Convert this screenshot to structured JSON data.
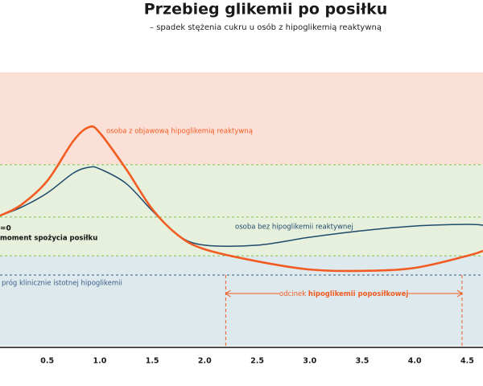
{
  "chart_data": {
    "type": "line",
    "title": "Przebieg glikemii po posiłku",
    "subtitle": "– spadek stężenia cukru u osób z hipoglikemią reaktywną",
    "x": [
      0.05,
      0.25,
      0.5,
      0.75,
      0.9,
      1.0,
      1.25,
      1.5,
      1.75,
      2.0,
      2.5,
      3.0,
      3.5,
      4.0,
      4.5,
      4.65
    ],
    "series": [
      {
        "name": "osoba z objawową hipoglikemią reaktywną",
        "color": "#f25c22",
        "values": [
          47.6,
          51.5,
          60.3,
          75,
          80,
          77.9,
          64.7,
          50,
          40.3,
          35.3,
          30.9,
          27.9,
          27.4,
          28.5,
          32.9,
          34.7
        ]
      },
      {
        "name": "osoba bez hipoglikemii reaktywnej",
        "color": "#1e4a6b",
        "values": [
          47.6,
          50.6,
          55.9,
          63.2,
          65.3,
          64.7,
          59.4,
          49.4,
          40.3,
          36.8,
          36.8,
          39.7,
          42.1,
          43.8,
          44.4,
          44.1
        ]
      }
    ],
    "xlim": [
      0.05,
      4.65
    ],
    "ylim": [
      0,
      100
    ],
    "xticks": [
      0.5,
      {
        "value": 1,
        "label": "1.0"
      },
      1.5,
      {
        "value": 2,
        "label": "2.0"
      },
      2.5,
      {
        "value": 3,
        "label": "3.0"
      },
      3.5,
      {
        "value": 4,
        "label": "4.0"
      },
      4.5
    ],
    "bands": [
      {
        "from": 66.2,
        "to": 100,
        "color": "#fbe0d8"
      },
      {
        "from": 32.9,
        "to": 66.2,
        "color": "#e6f0dc"
      },
      {
        "from": 0,
        "to": 32.9,
        "color": "#dde9ec"
      }
    ],
    "guide_lines": [
      66.2,
      47.1,
      32.9
    ],
    "guide_color": "#7dc24b",
    "threshold": {
      "value": 25.9,
      "label": "próg klinicznie istotnej hipoglikemii",
      "color": "#3a5f8a"
    },
    "start_note": [
      "=0",
      "moment spożycia posiłku"
    ],
    "span": {
      "x": [
        2.2,
        4.45
      ],
      "y": 19.1,
      "label": "odcinek",
      "label_bold": "hipoglikemii poposiłkowej",
      "color": "#f25c22"
    }
  }
}
